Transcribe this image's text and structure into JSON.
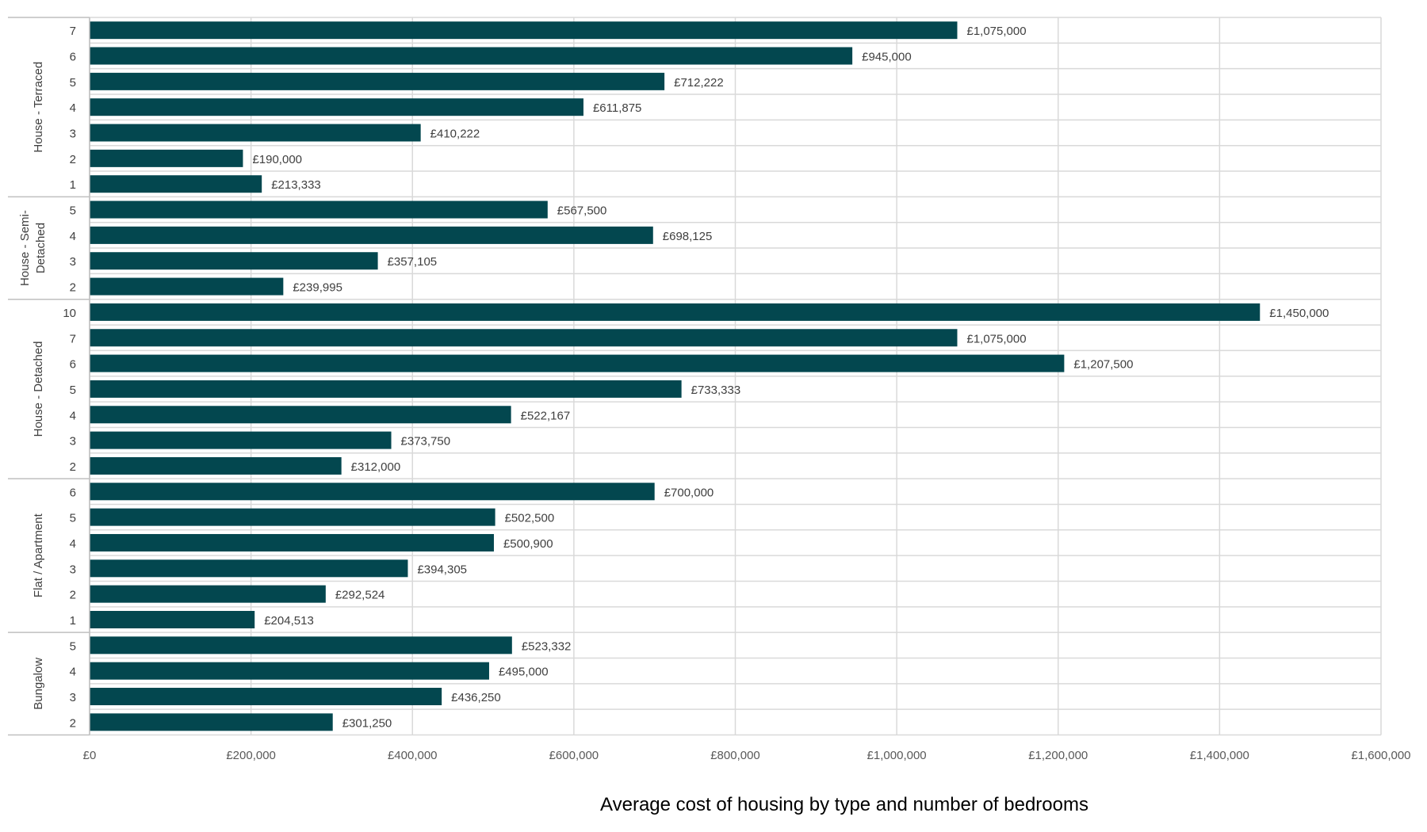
{
  "chart_data": {
    "type": "bar",
    "orientation": "horizontal",
    "title": "Average cost of housing by type and number of bedrooms",
    "xlim": [
      0,
      1600000
    ],
    "x_ticks": [
      0,
      200000,
      400000,
      600000,
      800000,
      1000000,
      1200000,
      1400000,
      1600000
    ],
    "x_tick_labels": [
      "£0",
      "£200,000",
      "£400,000",
      "£600,000",
      "£800,000",
      "£1,000,000",
      "£1,200,000",
      "£1,400,000",
      "£1,600,000"
    ],
    "grid": true,
    "bar_color": "#03474F",
    "groups": [
      {
        "name": "House - Terraced",
        "bars": [
          {
            "category": "7",
            "value": 1075000,
            "label": "£1,075,000"
          },
          {
            "category": "6",
            "value": 945000,
            "label": "£945,000"
          },
          {
            "category": "5",
            "value": 712222,
            "label": "£712,222"
          },
          {
            "category": "4",
            "value": 611875,
            "label": "£611,875"
          },
          {
            "category": "3",
            "value": 410222,
            "label": "£410,222"
          },
          {
            "category": "2",
            "value": 190000,
            "label": "£190,000"
          },
          {
            "category": "1",
            "value": 213333,
            "label": "£213,333"
          }
        ]
      },
      {
        "name": "House - Semi-Detached",
        "bars": [
          {
            "category": "5",
            "value": 567500,
            "label": "£567,500"
          },
          {
            "category": "4",
            "value": 698125,
            "label": "£698,125"
          },
          {
            "category": "3",
            "value": 357105,
            "label": "£357,105"
          },
          {
            "category": "2",
            "value": 239995,
            "label": "£239,995"
          }
        ]
      },
      {
        "name": "House - Detached",
        "bars": [
          {
            "category": "10",
            "value": 1450000,
            "label": "£1,450,000"
          },
          {
            "category": "7",
            "value": 1075000,
            "label": "£1,075,000"
          },
          {
            "category": "6",
            "value": 1207500,
            "label": "£1,207,500"
          },
          {
            "category": "5",
            "value": 733333,
            "label": "£733,333"
          },
          {
            "category": "4",
            "value": 522167,
            "label": "£522,167"
          },
          {
            "category": "3",
            "value": 373750,
            "label": "£373,750"
          },
          {
            "category": "2",
            "value": 312000,
            "label": "£312,000"
          }
        ]
      },
      {
        "name": "Flat / Apartment",
        "bars": [
          {
            "category": "6",
            "value": 700000,
            "label": "£700,000"
          },
          {
            "category": "5",
            "value": 502500,
            "label": "£502,500"
          },
          {
            "category": "4",
            "value": 500900,
            "label": "£500,900"
          },
          {
            "category": "3",
            "value": 394305,
            "label": "£394,305"
          },
          {
            "category": "2",
            "value": 292524,
            "label": "£292,524"
          },
          {
            "category": "1",
            "value": 204513,
            "label": "£204,513"
          }
        ]
      },
      {
        "name": "Bungalow",
        "bars": [
          {
            "category": "5",
            "value": 523332,
            "label": "£523,332"
          },
          {
            "category": "4",
            "value": 495000,
            "label": "£495,000"
          },
          {
            "category": "3",
            "value": 436250,
            "label": "£436,250"
          },
          {
            "category": "2",
            "value": 301250,
            "label": "£301,250"
          }
        ]
      }
    ]
  }
}
